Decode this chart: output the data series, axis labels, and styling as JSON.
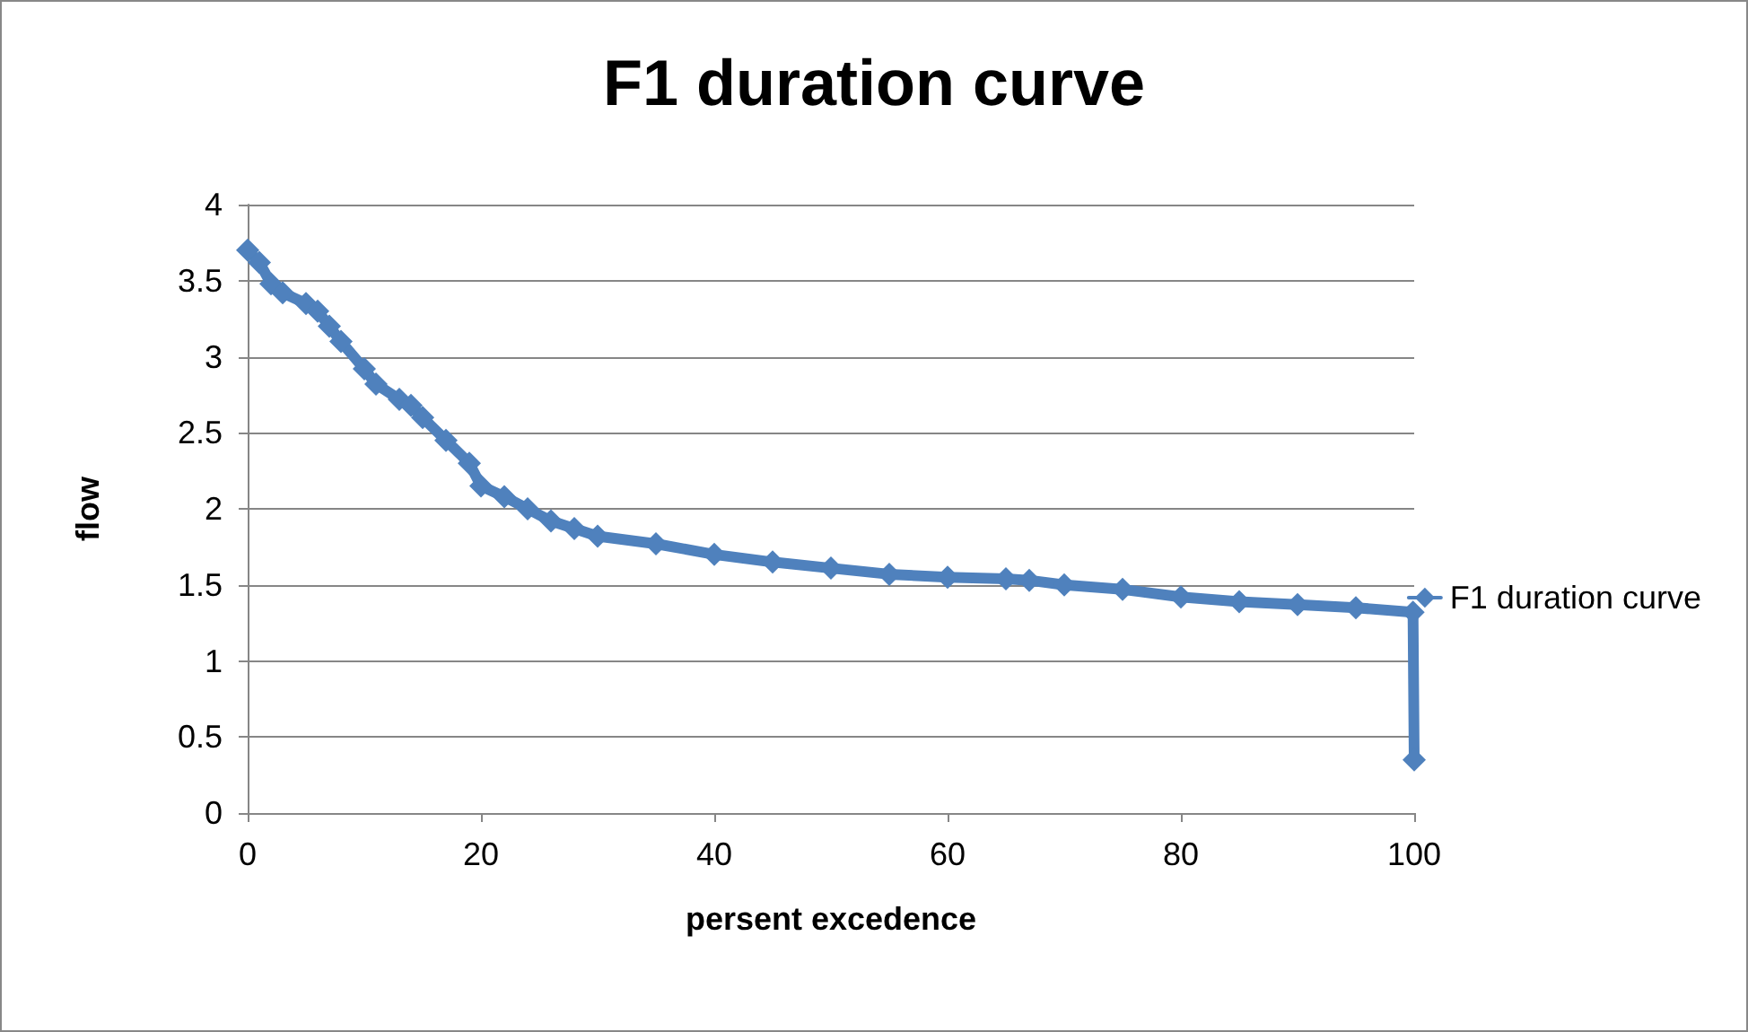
{
  "chart_data": {
    "type": "line",
    "title": "F1 duration curve",
    "xlabel": "persent excedence",
    "ylabel": "flow",
    "x": [
      0,
      1,
      2,
      3,
      5,
      6,
      7,
      8,
      10,
      11,
      13,
      14,
      15,
      17,
      19,
      20,
      22,
      24,
      26,
      28,
      30,
      35,
      40,
      45,
      50,
      55,
      60,
      65,
      67,
      70,
      75,
      80,
      85,
      90,
      95,
      99.9,
      100
    ],
    "series": [
      {
        "name": "F1 duration curve",
        "color": "#4f81bd",
        "values": [
          3.7,
          3.62,
          3.48,
          3.42,
          3.35,
          3.3,
          3.2,
          3.1,
          2.92,
          2.82,
          2.72,
          2.68,
          2.6,
          2.45,
          2.3,
          2.15,
          2.08,
          2.0,
          1.92,
          1.87,
          1.82,
          1.77,
          1.7,
          1.65,
          1.61,
          1.57,
          1.55,
          1.54,
          1.53,
          1.5,
          1.47,
          1.42,
          1.39,
          1.37,
          1.35,
          1.32,
          0.35
        ]
      }
    ],
    "xlim": [
      0,
      100
    ],
    "xticks": [
      0,
      20,
      40,
      60,
      80,
      100
    ],
    "ylim": [
      0,
      4
    ],
    "yticks": [
      0,
      0.5,
      1,
      1.5,
      2,
      2.5,
      3,
      3.5,
      4
    ],
    "grid": "y",
    "legend": "right",
    "marker": "diamond",
    "line_style": "solid"
  }
}
